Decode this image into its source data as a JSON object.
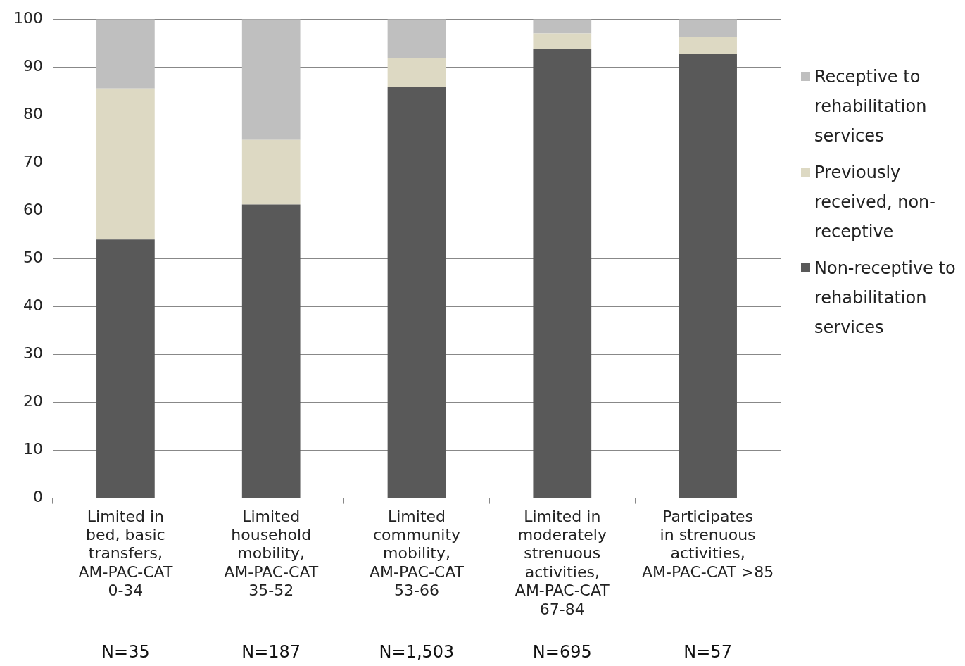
{
  "chart_data": {
    "type": "bar",
    "stacked": true,
    "categories": [
      "Limited in bed, basic transfers, AM-PAC-CAT 0-34",
      "Limited household mobility, AM-PAC-CAT 35-52",
      "Limited community mobility, AM-PAC-CAT 53-66",
      "Limited in moderately strenuous activities, AM-PAC-CAT 67-84",
      "Participates in strenuous activities, AM-PAC-CAT >85"
    ],
    "series": [
      {
        "name": "Non-receptive to rehabilitation services",
        "color": "#595959",
        "values": [
          54,
          61.3,
          85.8,
          93.8,
          92.8
        ]
      },
      {
        "name": "Previously received, non-receptive",
        "color": "#ddd9c3",
        "values": [
          31.5,
          13.5,
          6.1,
          3.2,
          3.4
        ]
      },
      {
        "name": "Receptive to rehabilitation services",
        "color": "#bfbfbf",
        "values": [
          14.5,
          25.2,
          8.1,
          3,
          3.8
        ]
      }
    ],
    "ylim": [
      0,
      100
    ],
    "yticks": [
      0,
      10,
      20,
      30,
      40,
      50,
      60,
      70,
      80,
      90,
      100
    ],
    "grid": "y",
    "legend": "right",
    "annotations": [
      "N=35",
      "N=187",
      "N=1,503",
      "N=695",
      "N=57"
    ]
  }
}
